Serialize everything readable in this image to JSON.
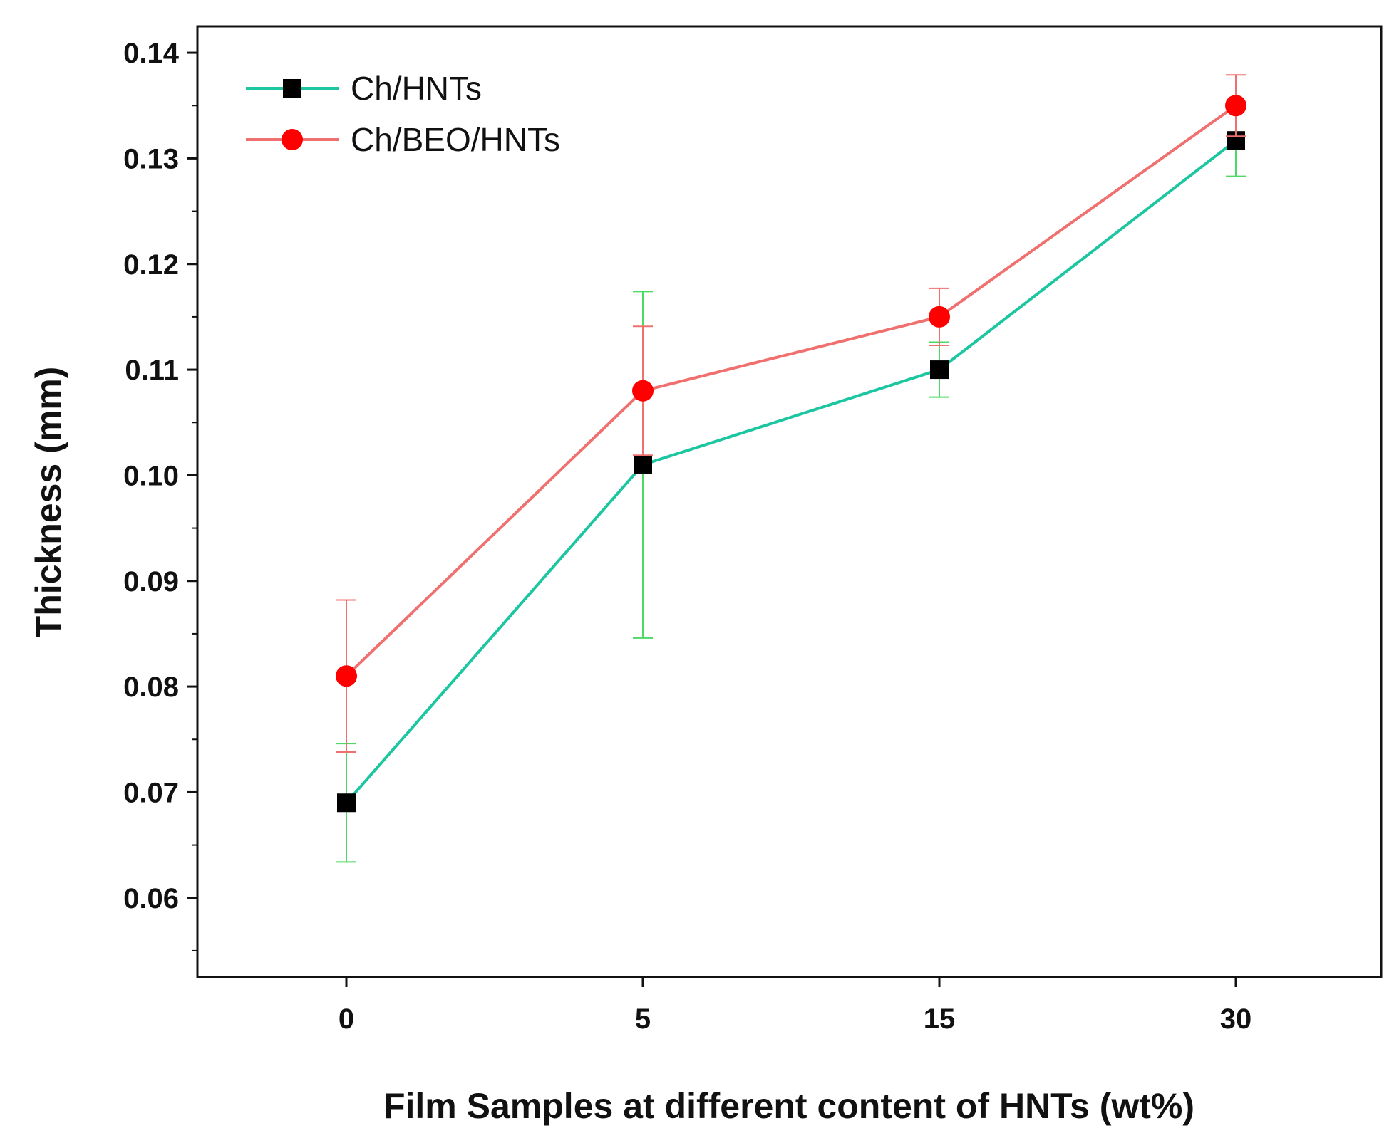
{
  "chart_data": {
    "type": "line",
    "title": "",
    "xlabel": "Film Samples at different content of HNTs (wt%)",
    "ylabel": "Thickness (mm)",
    "categories": [
      "0",
      "5",
      "15",
      "30"
    ],
    "ylim": [
      0.0525,
      0.1425
    ],
    "yticks": [
      "0.06",
      "0.07",
      "0.08",
      "0.09",
      "0.10",
      "0.11",
      "0.12",
      "0.13",
      "0.14"
    ],
    "legend_position": "top-left",
    "grid": false,
    "series": [
      {
        "name": "Ch/HNTs",
        "color": "#1bc6a0",
        "error_color": "#4cd964",
        "marker": "square",
        "marker_color": "#000000",
        "values": [
          0.069,
          0.101,
          0.11,
          0.1317
        ],
        "errors": [
          0.0056,
          0.0164,
          0.0026,
          0.0034
        ]
      },
      {
        "name": "Ch/BEO/HNTs",
        "color": "#f07070",
        "error_color": "#f07070",
        "marker": "circle",
        "marker_color": "#ff0000",
        "values": [
          0.081,
          0.108,
          0.115,
          0.135
        ],
        "errors": [
          0.0072,
          0.0061,
          0.0027,
          0.0029
        ]
      }
    ]
  }
}
